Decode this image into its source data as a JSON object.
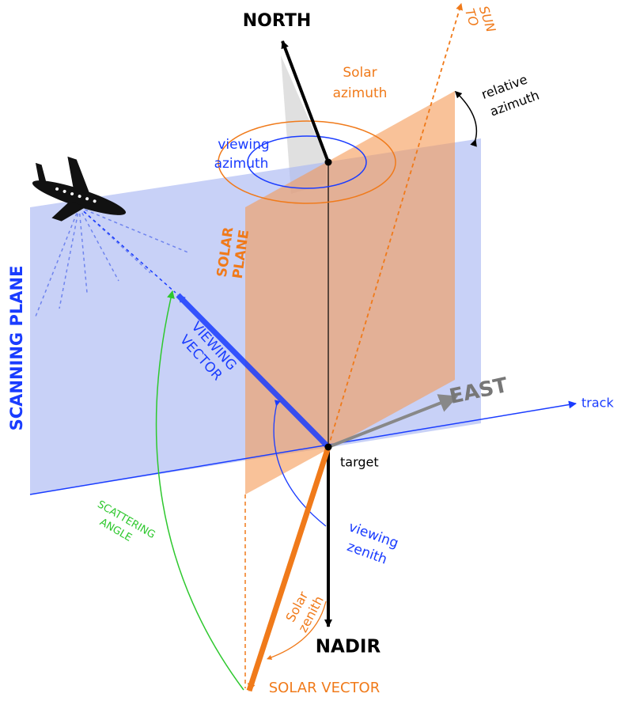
{
  "labels": {
    "north": "NORTH",
    "to_sun": [
      "TO",
      "SUN"
    ],
    "solar_azimuth": [
      "Solar",
      "azimuth"
    ],
    "relative_azimuth": [
      "relative",
      "azimuth"
    ],
    "viewing_azimuth": [
      "viewing",
      "azimuth"
    ],
    "scanning_plane": "SCANNING PLANE",
    "solar_plane": [
      "SOLAR",
      "PLANE"
    ],
    "viewing_vector": [
      "VIEWING",
      "VECTOR"
    ],
    "east": "EAST",
    "track": "track",
    "target": "target",
    "scattering_angle": [
      "SCATTERING",
      "ANGLE"
    ],
    "viewing_zenith": [
      "viewing",
      "zenith"
    ],
    "solar_zenith": [
      "Solar",
      "zenith"
    ],
    "nadir": "NADIR",
    "solar_vector": "SOLAR VECTOR"
  }
}
